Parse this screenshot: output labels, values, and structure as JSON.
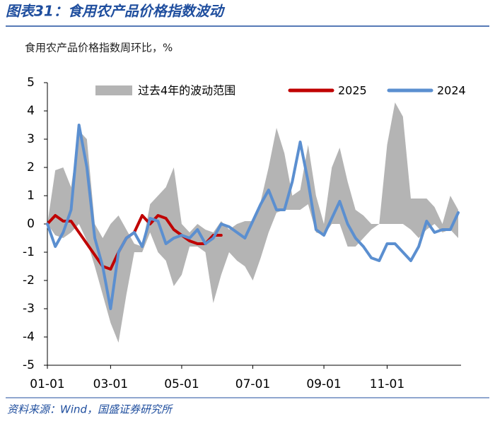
{
  "header": {
    "title": "图表31：食用农产品价格指数波动"
  },
  "chart_data": {
    "type": "line",
    "subtitle": "食用农产品价格指数周环比，%",
    "categories": [
      "01-01",
      null,
      null,
      null,
      null,
      null,
      null,
      null,
      "03-01",
      null,
      null,
      null,
      null,
      null,
      null,
      null,
      null,
      "05-01",
      null,
      null,
      null,
      null,
      null,
      null,
      null,
      null,
      "07-01",
      null,
      null,
      null,
      null,
      null,
      null,
      null,
      null,
      "09-01",
      null,
      null,
      null,
      null,
      null,
      null,
      null,
      "11-01",
      null,
      null,
      null,
      null,
      null,
      null,
      null,
      null,
      null
    ],
    "series": [
      {
        "name": "过去4年的波动范围",
        "color": "#b4b4b4",
        "kind": "band",
        "high": [
          0,
          1.9,
          2.0,
          1.3,
          3.3,
          3.0,
          0,
          -0.5,
          0,
          0.3,
          -0.2,
          -0.7,
          -0.8,
          0.7,
          1.0,
          1.3,
          2.0,
          0.0,
          -0.3,
          0.0,
          -0.2,
          -0.3,
          0.1,
          -0.2,
          0.0,
          0.1,
          0.1,
          0.8,
          2.0,
          3.4,
          2.5,
          1.0,
          1.2,
          2.8,
          1.0,
          0.0,
          2.0,
          2.7,
          1.5,
          0.5,
          0.3,
          0.0,
          0,
          2.8,
          4.3,
          3.8,
          0.9,
          0.9,
          0.9,
          0.6,
          0.0,
          1.0,
          0.5
        ],
        "low": [
          0,
          -0.4,
          -0.5,
          -0.3,
          0,
          -0.6,
          -1.5,
          -2.5,
          -3.5,
          -4.2,
          -2.5,
          -1.0,
          -1.0,
          -0.3,
          -1.0,
          -1.3,
          -2.2,
          -1.8,
          -0.8,
          -0.8,
          -1.0,
          -2.8,
          -1.8,
          -1.0,
          -1.3,
          -1.5,
          -2.0,
          -1.2,
          -0.3,
          0.4,
          0.5,
          0.5,
          0.5,
          0.7,
          -0.3,
          -0.4,
          0.0,
          0.0,
          -0.8,
          -0.8,
          -0.5,
          -0.2,
          0,
          0,
          0,
          0,
          -0.2,
          -0.5,
          -0.2,
          0.0,
          -0.3,
          -0.2,
          -0.5
        ]
      },
      {
        "name": "2025",
        "color": "#c00000",
        "values": [
          0,
          0.3,
          0.1,
          0.1,
          -0.3,
          -0.7,
          -1.1,
          -1.5,
          -1.6,
          -1.0,
          -0.5,
          -0.3,
          0.3,
          0.0,
          0.3,
          0.2,
          -0.2,
          -0.4,
          -0.6,
          -0.7,
          -0.7,
          -0.4,
          -0.4,
          null,
          null,
          null,
          null,
          null,
          null,
          null,
          null,
          null,
          null,
          null,
          null,
          null,
          null,
          null,
          null,
          null,
          null,
          null,
          null,
          null,
          null,
          null,
          null,
          null,
          null,
          null,
          null,
          null,
          null
        ]
      },
      {
        "name": "2024",
        "color": "#5b8fd0",
        "values": [
          0,
          -0.8,
          -0.3,
          0.5,
          3.5,
          2.0,
          -0.5,
          -1.5,
          -3.0,
          -1.0,
          -0.5,
          -0.3,
          -0.8,
          0.2,
          0.1,
          -0.7,
          -0.5,
          -0.4,
          -0.5,
          -0.2,
          -0.7,
          -0.5,
          0.0,
          -0.1,
          -0.3,
          -0.5,
          0.1,
          0.7,
          1.2,
          0.5,
          0.5,
          1.5,
          2.9,
          1.5,
          -0.2,
          -0.4,
          0.2,
          0.8,
          0.0,
          -0.5,
          -0.8,
          -1.2,
          -1.3,
          -0.7,
          -0.7,
          -1.0,
          -1.3,
          -0.8,
          0.1,
          -0.3,
          -0.2,
          -0.2,
          0.4
        ]
      }
    ],
    "ylim": [
      -5,
      5
    ],
    "yticks": [
      -5,
      -4,
      -3,
      -2,
      -1,
      0,
      1,
      2,
      3,
      4,
      5
    ]
  },
  "footer": {
    "source": "资料来源：Wind，国盛证券研究所"
  }
}
